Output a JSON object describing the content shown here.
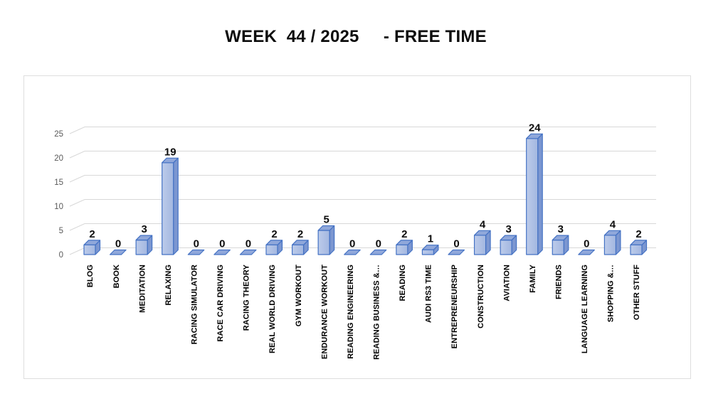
{
  "title": "WEEK  44 / 2025     - FREE TIME",
  "chart_data": {
    "type": "bar",
    "variant": "3d-column",
    "title": "WEEK  44 / 2025     - FREE TIME",
    "categories": [
      "BLOG",
      "BOOK",
      "MEDITATION",
      "RELAXING",
      "RACING SIMULATOR",
      "RACE CAR DRIVING",
      "RACING THEORY",
      "REAL WORLD DRIVING",
      "GYM WORKOUT",
      "ENDURANCE WORKOUT",
      "READING ENGINEERING",
      "READING BUSINESS &…",
      "READING",
      "AUDI RS3 TIME",
      "ENTREPRENEURSHIP",
      "CONSTRUCTION",
      "AVIATION",
      "FAMILY",
      "FRIENDS",
      "LANGUAGE LEARNING",
      "SHOPPING &…",
      "OTHER STUFF"
    ],
    "values": [
      2,
      0,
      3,
      19,
      0,
      0,
      0,
      2,
      2,
      5,
      0,
      0,
      2,
      1,
      0,
      4,
      3,
      24,
      3,
      0,
      4,
      2
    ],
    "xlabel": "",
    "ylabel": "",
    "ylim": [
      0,
      25
    ],
    "ytick_step": 5,
    "yticks": [
      0,
      5,
      10,
      15,
      20,
      25
    ],
    "grid": true,
    "legend_position": "none",
    "data_labels": true,
    "colors": {
      "bar_face": "#A3B7E0",
      "bar_face_light": "#BCCBEA",
      "bar_side": "#7B96D0",
      "bar_top": "#8FA7DA",
      "bar_edge": "#4472C4",
      "gridline": "#D8D8D8",
      "tick_label": "#595959",
      "value_label": "#0d0d0d",
      "category_label": "#000000",
      "chart_border": "#DEDEDE",
      "background": "#FFFFFF"
    }
  }
}
